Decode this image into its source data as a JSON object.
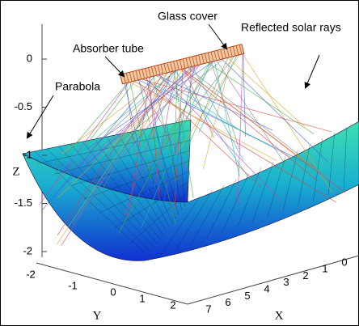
{
  "annotations": {
    "glass_cover": "Glass cover",
    "absorber_tube": "Absorber tube",
    "reflected_rays": "Reflected solar rays",
    "parabola": "Parabola"
  },
  "axes": {
    "z": {
      "label": "Z",
      "ticks": [
        0,
        -0.5,
        -1,
        -1.5,
        -2
      ]
    },
    "y": {
      "label": "Y",
      "ticks": [
        -2,
        -1,
        0,
        1,
        2
      ]
    },
    "x": {
      "label": "X",
      "ticks": [
        7,
        6,
        5,
        4,
        3,
        2,
        1,
        0
      ]
    }
  }
}
